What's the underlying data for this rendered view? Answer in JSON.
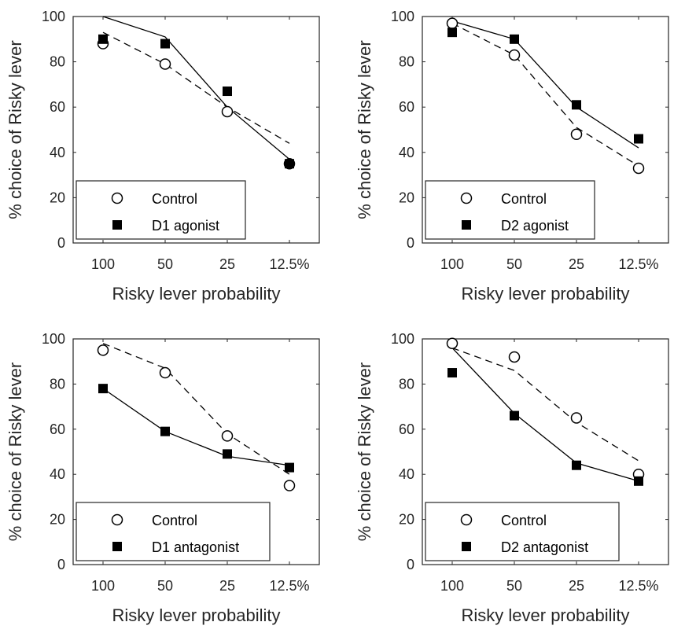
{
  "chart_data": [
    {
      "type": "scatter",
      "xlabel": "Risky lever probability",
      "ylabel": "% choice of Risky lever",
      "categories": [
        "100",
        "50",
        "25",
        "12.5%"
      ],
      "ylim": [
        0,
        100
      ],
      "yticks": [
        "0",
        "20",
        "40",
        "60",
        "80",
        "100"
      ],
      "legend_position": "bottom-left",
      "series": [
        {
          "name": "Control",
          "marker": "circle",
          "values": [
            88,
            79,
            58,
            35
          ],
          "fit_style": "dashed",
          "fit": [
            93,
            79,
            60,
            44
          ]
        },
        {
          "name": "D1 agonist",
          "marker": "square",
          "values": [
            90,
            88,
            67,
            35
          ],
          "fit_style": "solid",
          "fit": [
            100,
            91,
            60,
            37
          ]
        }
      ]
    },
    {
      "type": "scatter",
      "xlabel": "Risky lever probability",
      "ylabel": "% choice of Risky lever",
      "categories": [
        "100",
        "50",
        "25",
        "12.5%"
      ],
      "ylim": [
        0,
        100
      ],
      "yticks": [
        "0",
        "20",
        "40",
        "60",
        "80",
        "100"
      ],
      "legend_position": "bottom-left",
      "series": [
        {
          "name": "Control",
          "marker": "circle",
          "values": [
            97,
            83,
            48,
            33
          ],
          "fit_style": "dashed",
          "fit": [
            97,
            83,
            51,
            34
          ]
        },
        {
          "name": "D2 agonist",
          "marker": "square",
          "values": [
            93,
            90,
            61,
            46
          ],
          "fit_style": "solid",
          "fit": [
            98,
            90,
            60,
            42
          ]
        }
      ]
    },
    {
      "type": "scatter",
      "xlabel": "Risky lever probability",
      "ylabel": "% choice of Risky lever",
      "categories": [
        "100",
        "50",
        "25",
        "12.5%"
      ],
      "ylim": [
        0,
        100
      ],
      "yticks": [
        "0",
        "20",
        "40",
        "60",
        "80",
        "100"
      ],
      "legend_position": "bottom-left",
      "series": [
        {
          "name": "Control",
          "marker": "circle",
          "values": [
            95,
            85,
            57,
            35
          ],
          "fit_style": "dashed",
          "fit": [
            98,
            87,
            58,
            40
          ]
        },
        {
          "name": "D1 antagonist",
          "marker": "square",
          "values": [
            78,
            59,
            49,
            43
          ],
          "fit_style": "solid",
          "fit": [
            78,
            59,
            48,
            44
          ]
        }
      ]
    },
    {
      "type": "scatter",
      "xlabel": "Risky lever probability",
      "ylabel": "% choice of Risky lever",
      "categories": [
        "100",
        "50",
        "25",
        "12.5%"
      ],
      "ylim": [
        0,
        100
      ],
      "yticks": [
        "0",
        "20",
        "40",
        "60",
        "80",
        "100"
      ],
      "legend_position": "bottom-left",
      "series": [
        {
          "name": "Control",
          "marker": "circle",
          "values": [
            98,
            92,
            65,
            40
          ],
          "fit_style": "dashed",
          "fit": [
            96,
            86,
            63,
            46
          ]
        },
        {
          "name": "D2 antagonist",
          "marker": "square",
          "values": [
            85,
            66,
            44,
            37
          ],
          "fit_style": "solid",
          "fit": [
            96,
            67,
            45,
            37
          ]
        }
      ]
    }
  ]
}
